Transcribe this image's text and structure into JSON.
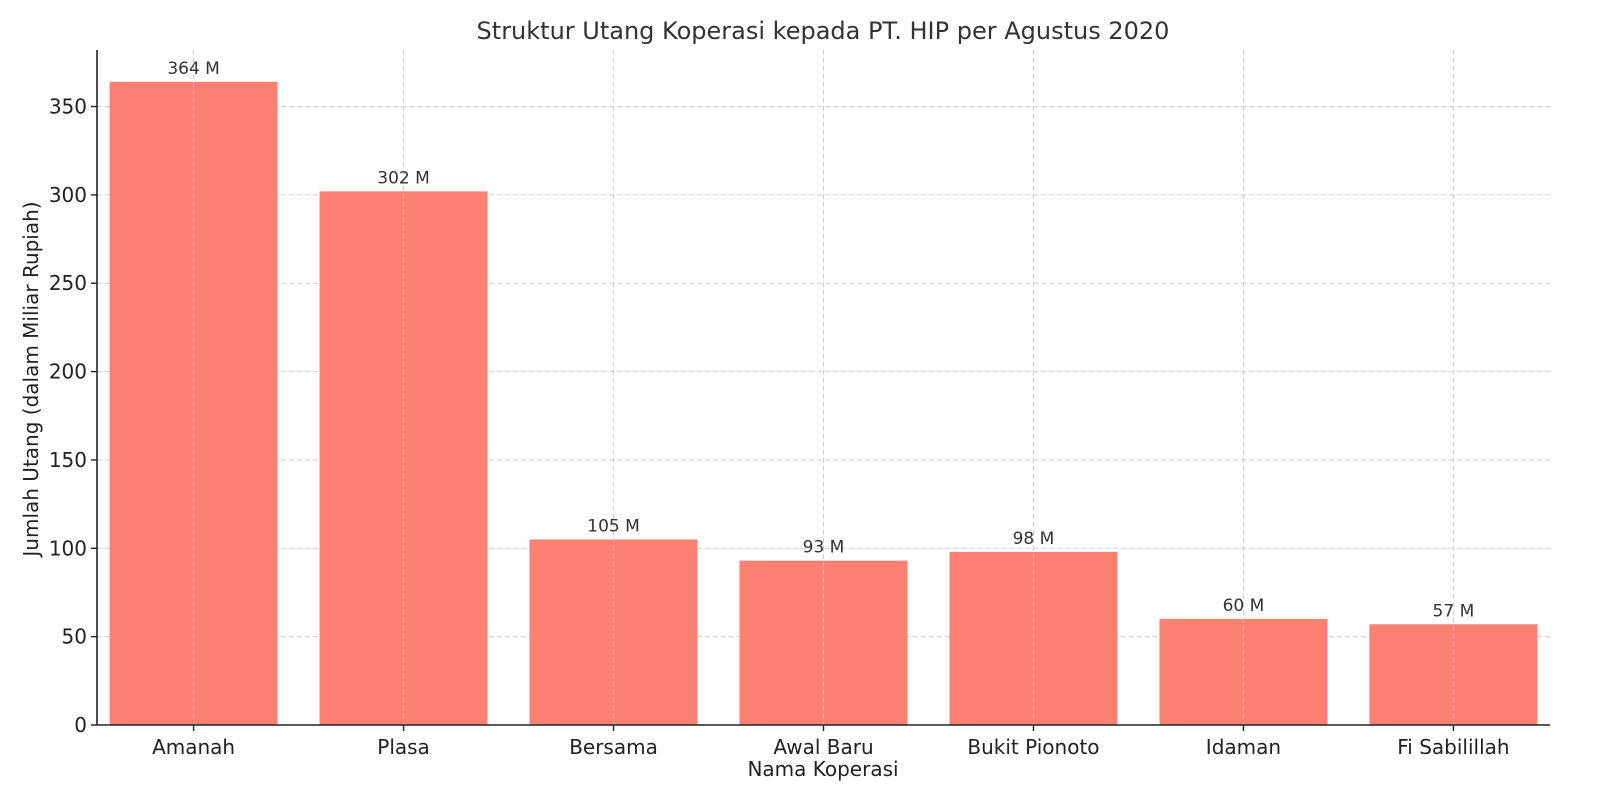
{
  "chart_data": {
    "type": "bar",
    "title": "Struktur Utang Koperasi kepada PT. HIP per Agustus 2020",
    "xlabel": "Nama Koperasi",
    "ylabel": "Jumlah Utang (dalam Miliar Rupiah)",
    "categories": [
      "Amanah",
      "Plasa",
      "Bersama",
      "Awal Baru",
      "Bukit Pionoto",
      "Idaman",
      "Fi Sabilillah"
    ],
    "values": [
      364,
      302,
      105,
      93,
      98,
      60,
      57
    ],
    "data_labels": [
      "364 M",
      "302 M",
      "105 M",
      "93 M",
      "98 M",
      "60 M",
      "57 M"
    ],
    "ylim": [
      0,
      382
    ],
    "yticks": [
      0,
      50,
      100,
      150,
      200,
      250,
      300,
      350
    ],
    "grid": true,
    "bar_color": "#fa8072"
  }
}
